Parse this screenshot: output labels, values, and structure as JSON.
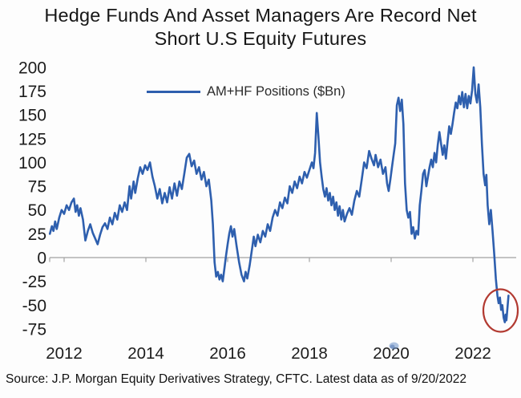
{
  "title": {
    "line1": "Hedge Funds And Asset Managers Are Record Net",
    "line2": "Short U.S Equity Futures"
  },
  "legend": {
    "label": "AM+HF Positions ($Bn)"
  },
  "source": "Source: J.P. Morgan Equity Derivatives Strategy, CFTC. Latest data as of 9/20/2022",
  "colors": {
    "line": "#2e5fae",
    "annotation_circle": "#b23a31",
    "axis": "#a3a3a3",
    "text": "#1c1c1c"
  },
  "chart_data": {
    "type": "line",
    "title": "Hedge Funds And Asset Managers Are Record Net Short U.S Equity Futures",
    "xlabel": "",
    "ylabel": "",
    "x_ticks": [
      2012,
      2014,
      2016,
      2018,
      2020,
      2022
    ],
    "y_ticks": [
      200,
      175,
      150,
      125,
      100,
      75,
      50,
      25,
      0,
      -25,
      -50,
      -75
    ],
    "xlim": [
      2011.6,
      2023.2
    ],
    "ylim": [
      -75,
      200
    ],
    "grid": "zero-line-only",
    "legend_position": "top-center",
    "annotation": {
      "type": "circle",
      "x": 2022.7,
      "y": -56,
      "note": "record net short lows circled in red"
    },
    "series": [
      {
        "name": "AM+HF Positions ($Bn)",
        "points": [
          [
            2011.65,
            25
          ],
          [
            2011.7,
            33
          ],
          [
            2011.74,
            28
          ],
          [
            2011.78,
            38
          ],
          [
            2011.82,
            30
          ],
          [
            2011.88,
            42
          ],
          [
            2011.94,
            50
          ],
          [
            2012.0,
            46
          ],
          [
            2012.06,
            55
          ],
          [
            2012.12,
            50
          ],
          [
            2012.18,
            58
          ],
          [
            2012.24,
            62
          ],
          [
            2012.28,
            48
          ],
          [
            2012.32,
            55
          ],
          [
            2012.36,
            44
          ],
          [
            2012.4,
            52
          ],
          [
            2012.46,
            40
          ],
          [
            2012.52,
            18
          ],
          [
            2012.58,
            28
          ],
          [
            2012.64,
            35
          ],
          [
            2012.7,
            26
          ],
          [
            2012.76,
            20
          ],
          [
            2012.82,
            14
          ],
          [
            2012.88,
            24
          ],
          [
            2012.94,
            32
          ],
          [
            2013.0,
            36
          ],
          [
            2013.06,
            30
          ],
          [
            2013.12,
            42
          ],
          [
            2013.18,
            35
          ],
          [
            2013.24,
            47
          ],
          [
            2013.3,
            40
          ],
          [
            2013.36,
            55
          ],
          [
            2013.42,
            48
          ],
          [
            2013.48,
            58
          ],
          [
            2013.54,
            50
          ],
          [
            2013.6,
            75
          ],
          [
            2013.64,
            62
          ],
          [
            2013.7,
            80
          ],
          [
            2013.74,
            68
          ],
          [
            2013.8,
            83
          ],
          [
            2013.86,
            95
          ],
          [
            2013.92,
            88
          ],
          [
            2013.98,
            97
          ],
          [
            2014.04,
            92
          ],
          [
            2014.1,
            100
          ],
          [
            2014.16,
            85
          ],
          [
            2014.22,
            75
          ],
          [
            2014.28,
            62
          ],
          [
            2014.34,
            72
          ],
          [
            2014.4,
            57
          ],
          [
            2014.46,
            68
          ],
          [
            2014.52,
            58
          ],
          [
            2014.58,
            74
          ],
          [
            2014.64,
            62
          ],
          [
            2014.7,
            78
          ],
          [
            2014.76,
            65
          ],
          [
            2014.82,
            80
          ],
          [
            2014.88,
            72
          ],
          [
            2014.94,
            88
          ],
          [
            2015.0,
            105
          ],
          [
            2015.06,
            109
          ],
          [
            2015.12,
            96
          ],
          [
            2015.18,
            102
          ],
          [
            2015.24,
            88
          ],
          [
            2015.3,
            95
          ],
          [
            2015.36,
            82
          ],
          [
            2015.42,
            90
          ],
          [
            2015.48,
            75
          ],
          [
            2015.54,
            82
          ],
          [
            2015.6,
            60
          ],
          [
            2015.64,
            35
          ],
          [
            2015.68,
            -5
          ],
          [
            2015.72,
            -20
          ],
          [
            2015.76,
            -15
          ],
          [
            2015.8,
            -23
          ],
          [
            2015.84,
            -18
          ],
          [
            2015.88,
            -25
          ],
          [
            2015.92,
            -12
          ],
          [
            2015.96,
            2
          ],
          [
            2016.0,
            14
          ],
          [
            2016.04,
            25
          ],
          [
            2016.08,
            33
          ],
          [
            2016.12,
            22
          ],
          [
            2016.16,
            30
          ],
          [
            2016.22,
            12
          ],
          [
            2016.28,
            -5
          ],
          [
            2016.34,
            -18
          ],
          [
            2016.4,
            -25
          ],
          [
            2016.44,
            -15
          ],
          [
            2016.48,
            -22
          ],
          [
            2016.54,
            -8
          ],
          [
            2016.6,
            10
          ],
          [
            2016.64,
            22
          ],
          [
            2016.68,
            12
          ],
          [
            2016.74,
            24
          ],
          [
            2016.8,
            16
          ],
          [
            2016.86,
            28
          ],
          [
            2016.92,
            22
          ],
          [
            2016.98,
            35
          ],
          [
            2017.04,
            28
          ],
          [
            2017.1,
            42
          ],
          [
            2017.16,
            50
          ],
          [
            2017.22,
            44
          ],
          [
            2017.28,
            58
          ],
          [
            2017.34,
            52
          ],
          [
            2017.4,
            63
          ],
          [
            2017.46,
            57
          ],
          [
            2017.52,
            75
          ],
          [
            2017.58,
            68
          ],
          [
            2017.64,
            80
          ],
          [
            2017.7,
            73
          ],
          [
            2017.76,
            85
          ],
          [
            2017.82,
            78
          ],
          [
            2017.88,
            90
          ],
          [
            2017.94,
            84
          ],
          [
            2018.0,
            92
          ],
          [
            2018.06,
            100
          ],
          [
            2018.1,
            94
          ],
          [
            2018.14,
            110
          ],
          [
            2018.18,
            152
          ],
          [
            2018.22,
            128
          ],
          [
            2018.26,
            100
          ],
          [
            2018.3,
            85
          ],
          [
            2018.34,
            72
          ],
          [
            2018.38,
            64
          ],
          [
            2018.42,
            73
          ],
          [
            2018.46,
            60
          ],
          [
            2018.5,
            68
          ],
          [
            2018.54,
            55
          ],
          [
            2018.58,
            64
          ],
          [
            2018.62,
            50
          ],
          [
            2018.66,
            58
          ],
          [
            2018.7,
            44
          ],
          [
            2018.74,
            54
          ],
          [
            2018.78,
            40
          ],
          [
            2018.82,
            50
          ],
          [
            2018.86,
            38
          ],
          [
            2018.92,
            46
          ],
          [
            2018.98,
            52
          ],
          [
            2019.04,
            45
          ],
          [
            2019.1,
            60
          ],
          [
            2019.16,
            70
          ],
          [
            2019.22,
            64
          ],
          [
            2019.28,
            82
          ],
          [
            2019.34,
            100
          ],
          [
            2019.4,
            94
          ],
          [
            2019.46,
            112
          ],
          [
            2019.52,
            104
          ],
          [
            2019.58,
            97
          ],
          [
            2019.62,
            108
          ],
          [
            2019.68,
            95
          ],
          [
            2019.74,
            103
          ],
          [
            2019.8,
            88
          ],
          [
            2019.86,
            95
          ],
          [
            2019.9,
            78
          ],
          [
            2019.94,
            70
          ],
          [
            2019.98,
            82
          ],
          [
            2020.02,
            95
          ],
          [
            2020.06,
            108
          ],
          [
            2020.1,
            120
          ],
          [
            2020.14,
            160
          ],
          [
            2020.18,
            168
          ],
          [
            2020.22,
            154
          ],
          [
            2020.26,
            166
          ],
          [
            2020.3,
            140
          ],
          [
            2020.34,
            78
          ],
          [
            2020.38,
            50
          ],
          [
            2020.42,
            42
          ],
          [
            2020.46,
            48
          ],
          [
            2020.5,
            25
          ],
          [
            2020.54,
            32
          ],
          [
            2020.58,
            20
          ],
          [
            2020.62,
            28
          ],
          [
            2020.66,
            24
          ],
          [
            2020.7,
            55
          ],
          [
            2020.74,
            70
          ],
          [
            2020.78,
            88
          ],
          [
            2020.82,
            92
          ],
          [
            2020.86,
            75
          ],
          [
            2020.9,
            85
          ],
          [
            2020.94,
            95
          ],
          [
            2020.98,
            103
          ],
          [
            2021.02,
            95
          ],
          [
            2021.06,
            110
          ],
          [
            2021.1,
            100
          ],
          [
            2021.14,
            118
          ],
          [
            2021.18,
            132
          ],
          [
            2021.22,
            120
          ],
          [
            2021.26,
            108
          ],
          [
            2021.3,
            118
          ],
          [
            2021.34,
            104
          ],
          [
            2021.38,
            122
          ],
          [
            2021.42,
            138
          ],
          [
            2021.46,
            130
          ],
          [
            2021.5,
            140
          ],
          [
            2021.54,
            152
          ],
          [
            2021.58,
            163
          ],
          [
            2021.62,
            157
          ],
          [
            2021.66,
            170
          ],
          [
            2021.7,
            161
          ],
          [
            2021.74,
            174
          ],
          [
            2021.78,
            158
          ],
          [
            2021.82,
            172
          ],
          [
            2021.86,
            157
          ],
          [
            2021.9,
            170
          ],
          [
            2021.94,
            162
          ],
          [
            2021.98,
            176
          ],
          [
            2022.02,
            200
          ],
          [
            2022.06,
            172
          ],
          [
            2022.1,
            163
          ],
          [
            2022.14,
            182
          ],
          [
            2022.18,
            158
          ],
          [
            2022.22,
            120
          ],
          [
            2022.26,
            88
          ],
          [
            2022.3,
            76
          ],
          [
            2022.33,
            87
          ],
          [
            2022.36,
            55
          ],
          [
            2022.4,
            35
          ],
          [
            2022.44,
            50
          ],
          [
            2022.48,
            28
          ],
          [
            2022.52,
            5
          ],
          [
            2022.56,
            -22
          ],
          [
            2022.6,
            -40
          ],
          [
            2022.63,
            -48
          ],
          [
            2022.66,
            -42
          ],
          [
            2022.69,
            -55
          ],
          [
            2022.72,
            -50
          ],
          [
            2022.75,
            -63
          ],
          [
            2022.78,
            -68
          ],
          [
            2022.8,
            -60
          ],
          [
            2022.82,
            -66
          ],
          [
            2022.87,
            -40
          ]
        ]
      }
    ]
  }
}
